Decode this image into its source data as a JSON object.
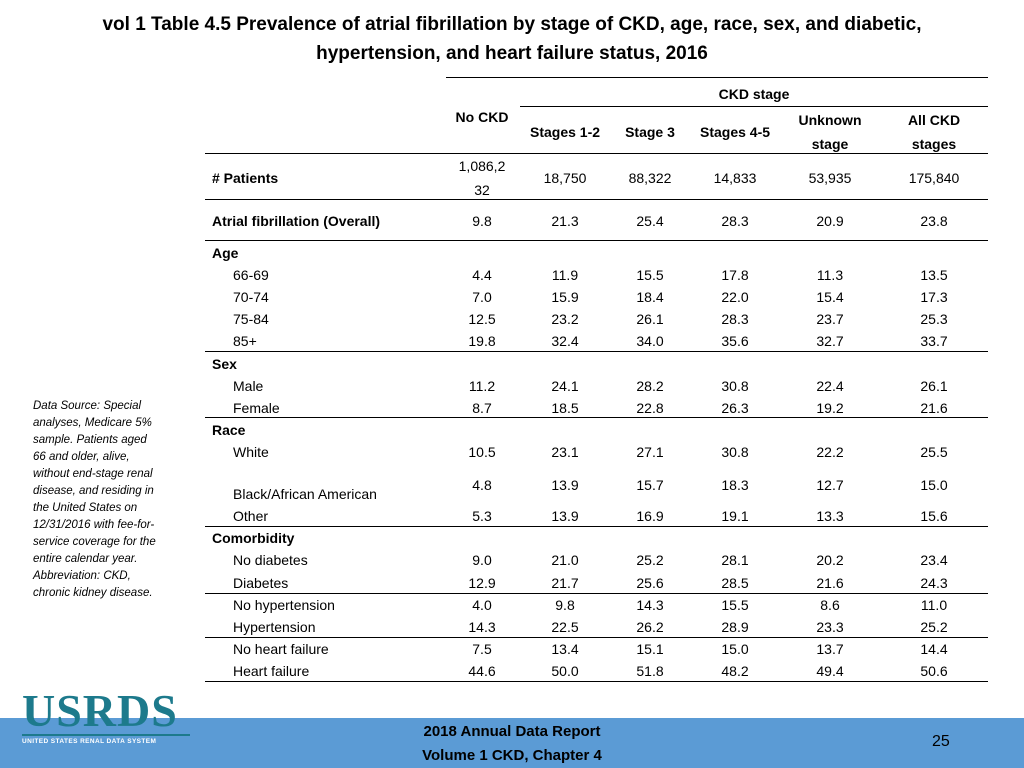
{
  "title": {
    "line1": "vol 1 Table 4.5 Prevalence of atrial fibrillation by stage of CKD, age, race, sex, and diabetic,",
    "line2": "hypertension, and heart failure status, 2016"
  },
  "table": {
    "group_header": "CKD stage",
    "headers": {
      "no_ckd": "No CKD",
      "stages_1_2": "Stages 1-2",
      "stage_3": "Stage 3",
      "stages_4_5": "Stages 4-5",
      "unknown_1": "Unknown",
      "unknown_2": "stage",
      "all_1": "All CKD",
      "all_2": "stages"
    },
    "patients": {
      "label": "# Patients",
      "no_ckd_1": "1,086,2",
      "no_ckd_2": "32",
      "values": [
        "18,750",
        "88,322",
        "14,833",
        "53,935",
        "175,840"
      ]
    },
    "overall": {
      "label": "Atrial fibrillation (Overall)",
      "values": [
        "9.8",
        "21.3",
        "25.4",
        "28.3",
        "20.9",
        "23.8"
      ]
    },
    "sections": {
      "age": "Age",
      "sex": "Sex",
      "race": "Race",
      "comorbidity": "Comorbidity"
    },
    "rows": [
      {
        "label": "66-69",
        "values": [
          "4.4",
          "11.9",
          "15.5",
          "17.8",
          "11.3",
          "13.5"
        ]
      },
      {
        "label": "70-74",
        "values": [
          "7.0",
          "15.9",
          "18.4",
          "22.0",
          "15.4",
          "17.3"
        ]
      },
      {
        "label": "75-84",
        "values": [
          "12.5",
          "23.2",
          "26.1",
          "28.3",
          "23.7",
          "25.3"
        ]
      },
      {
        "label": "85+",
        "values": [
          "19.8",
          "32.4",
          "34.0",
          "35.6",
          "32.7",
          "33.7"
        ]
      },
      {
        "label": "Male",
        "values": [
          "11.2",
          "24.1",
          "28.2",
          "30.8",
          "22.4",
          "26.1"
        ]
      },
      {
        "label": "Female",
        "values": [
          "8.7",
          "18.5",
          "22.8",
          "26.3",
          "19.2",
          "21.6"
        ]
      },
      {
        "label": "White",
        "values": [
          "10.5",
          "23.1",
          "27.1",
          "30.8",
          "22.2",
          "25.5"
        ]
      },
      {
        "label": "Black/African American",
        "values": [
          "4.8",
          "13.9",
          "15.7",
          "18.3",
          "12.7",
          "15.0"
        ]
      },
      {
        "label": "Other",
        "values": [
          "5.3",
          "13.9",
          "16.9",
          "19.1",
          "13.3",
          "15.6"
        ]
      },
      {
        "label": "No diabetes",
        "values": [
          "9.0",
          "21.0",
          "25.2",
          "28.1",
          "20.2",
          "23.4"
        ]
      },
      {
        "label": "Diabetes",
        "values": [
          "12.9",
          "21.7",
          "25.6",
          "28.5",
          "21.6",
          "24.3"
        ]
      },
      {
        "label": "No hypertension",
        "values": [
          "4.0",
          "9.8",
          "14.3",
          "15.5",
          "8.6",
          "11.0"
        ]
      },
      {
        "label": "Hypertension",
        "values": [
          "14.3",
          "22.5",
          "26.2",
          "28.9",
          "23.3",
          "25.2"
        ]
      },
      {
        "label": "No heart failure",
        "values": [
          "7.5",
          "13.4",
          "15.1",
          "15.0",
          "13.7",
          "14.4"
        ]
      },
      {
        "label": "Heart failure",
        "values": [
          "44.6",
          "50.0",
          "51.8",
          "48.2",
          "49.4",
          "50.6"
        ]
      }
    ]
  },
  "note": "Data Source: Special analyses, Medicare 5% sample. Patients aged 66 and older, alive, without end-stage renal disease, and residing in the United States on 12/31/2016 with fee-for-service coverage for the entire calendar year. Abbreviation: CKD, chronic kidney disease.",
  "logo": {
    "text": "USRDS",
    "subtitle": "UNITED STATES RENAL DATA SYSTEM"
  },
  "footer": {
    "report_line1": "2018 Annual Data Report",
    "report_line2": "Volume 1 CKD, Chapter 4",
    "page_number": "25"
  },
  "colors": {
    "footer_band": "#5b9bd5",
    "logo": "#1d7a8c"
  }
}
